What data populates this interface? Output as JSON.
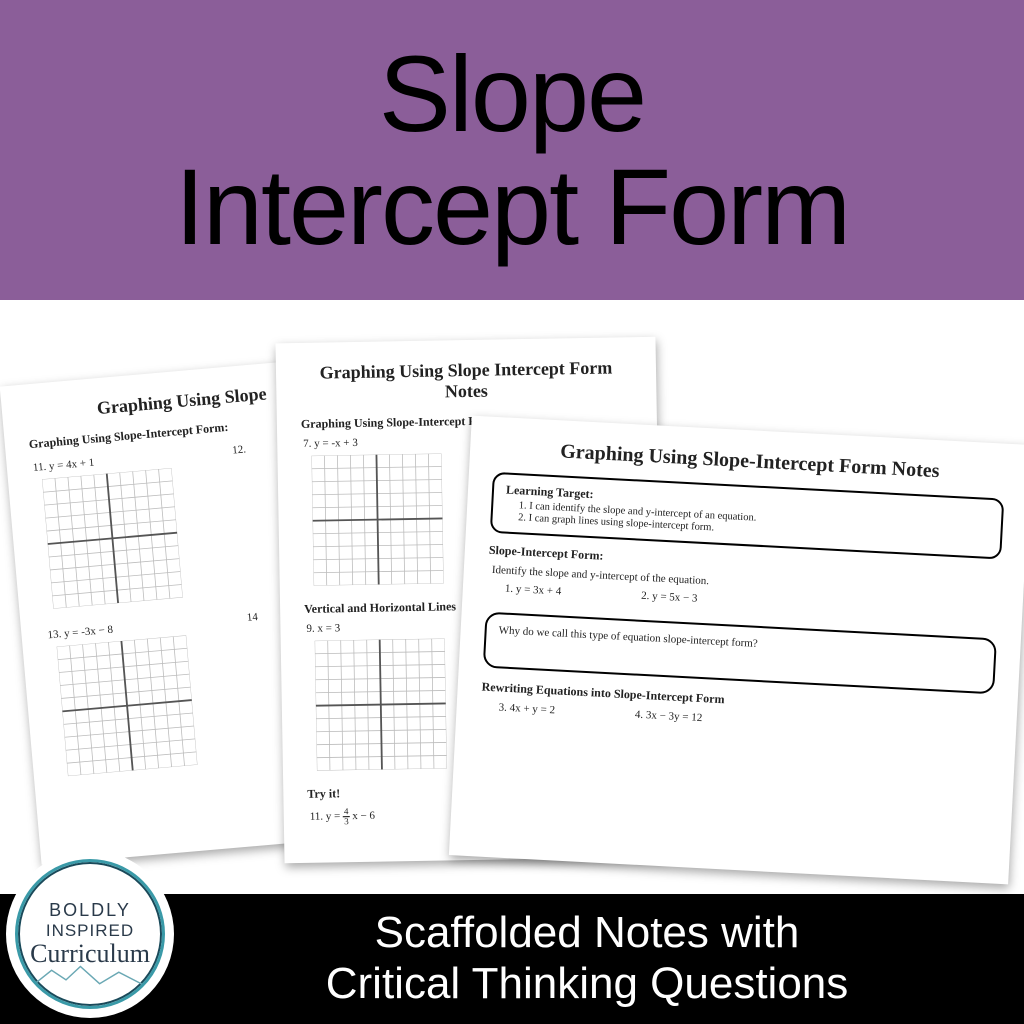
{
  "colors": {
    "header_bg": "#8b5e99",
    "footer_bg": "#000000",
    "page_bg": "#ffffff",
    "title_color": "#000000",
    "footer_text": "#ffffff",
    "logo_ring": "#3a9aa8",
    "logo_text": "#2a3a4a"
  },
  "header": {
    "title_line1": "Slope",
    "title_line2": "Intercept Form"
  },
  "footer": {
    "line1": "Scaffolded Notes with",
    "line2": "Critical Thinking Questions"
  },
  "logo": {
    "line1": "BOLDLY",
    "line2": "INSPIRED",
    "line3": "Curriculum"
  },
  "page1": {
    "title": "Graphing Using Slope",
    "section": "Graphing Using Slope-Intercept Form:",
    "eq11": "11. y = 4x + 1",
    "eq12": "12.",
    "eq13": "13. y = -3x − 8",
    "eq14": "14"
  },
  "page2": {
    "title": "Graphing Using Slope Intercept Form Notes",
    "sectionA": "Graphing Using Slope-Intercept Form:",
    "eq7": "7. y = -x + 3",
    "sectionB": "Vertical and Horizontal Lines",
    "eq9": "9. x = 3",
    "sectionC": "Try it!",
    "eq11_pre": "11. y = ",
    "eq11_num": "4",
    "eq11_den": "3",
    "eq11_post": " x − 6"
  },
  "page3": {
    "title": "Graphing Using Slope-Intercept Form Notes",
    "lt_title": "Learning Target:",
    "lt1": "I can identify the slope and y-intercept of an equation.",
    "lt2": "I can graph lines using slope-intercept form.",
    "sif_head": "Slope-Intercept Form:",
    "sif_sub": "Identify the slope and y-intercept of the equation.",
    "eq1": "1.    y = 3x + 4",
    "eq2": "2.   y = 5x − 3",
    "qbox": "Why do we call this type of equation slope-intercept form?",
    "rewrite_head": "Rewriting Equations into Slope-Intercept Form",
    "eq3": "3. 4x + y = 2",
    "eq4": "4. 3x − 3y = 12"
  },
  "grid": {
    "cells": 10,
    "line_color": "#bcbcbc",
    "axis_color": "#555555"
  }
}
